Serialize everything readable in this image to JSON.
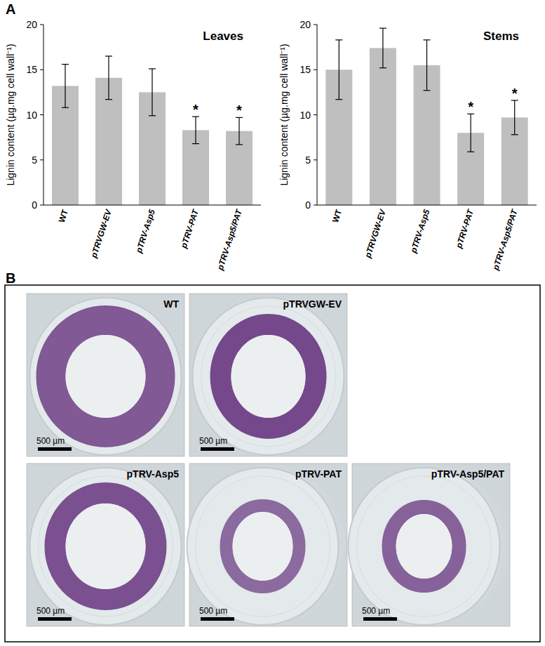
{
  "panel_labels": [
    "A",
    "B"
  ],
  "chart_data": [
    {
      "type": "bar",
      "title": "Leaves",
      "y_label": "Lignin content (µg.mg cell wall⁻¹)",
      "categories": [
        "WT",
        "pTRVGW-EV",
        "pTRV-Asp5",
        "pTRV-PAT",
        "pTRV-Asp5/PAT"
      ],
      "values": [
        13.2,
        14.1,
        12.5,
        8.3,
        8.2
      ],
      "errors": [
        2.4,
        2.4,
        2.6,
        1.5,
        1.5
      ],
      "significance": [
        null,
        null,
        null,
        "*",
        "*"
      ],
      "color": "#bfbfbf",
      "ylim": [
        0,
        20
      ],
      "yticks": [
        0,
        5,
        10,
        15,
        20
      ],
      "grid": false
    },
    {
      "type": "bar",
      "title": "Stems",
      "y_label": "Lignin content (µg.mg cell wall⁻¹)",
      "categories": [
        "WT",
        "pTRVGW-EV",
        "pTRV-Asp5",
        "pTRV-PAT",
        "pTRV-Asp5/PAT"
      ],
      "values": [
        15.0,
        17.4,
        15.5,
        8.0,
        9.7
      ],
      "errors": [
        3.3,
        2.2,
        2.8,
        2.1,
        1.9
      ],
      "significance": [
        null,
        null,
        null,
        "*",
        "*"
      ],
      "color": "#bfbfbf",
      "ylim": [
        0,
        20
      ],
      "yticks": [
        0,
        5,
        10,
        15,
        20
      ],
      "grid": false
    }
  ],
  "micrographs": [
    {
      "label": "WT",
      "scale_bar": "500 µm"
    },
    {
      "label": "pTRVGW-EV",
      "scale_bar": "500 µm"
    },
    {
      "label": "pTRV-Asp5",
      "scale_bar": "500 µm"
    },
    {
      "label": "pTRV-PAT",
      "scale_bar": "500 µm"
    },
    {
      "label": "pTRV-Asp5/PAT",
      "scale_bar": "500 µm"
    }
  ]
}
